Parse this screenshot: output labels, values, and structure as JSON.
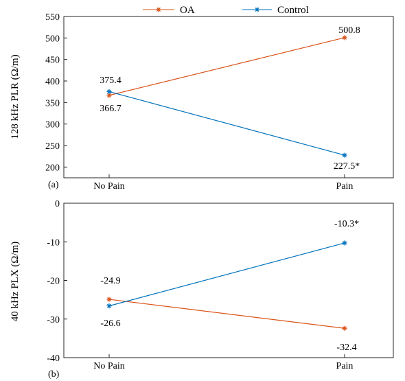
{
  "legend": {
    "placement": "top-center",
    "entries": [
      {
        "label": "OA",
        "color": "#d95319",
        "marker": "asterisk"
      },
      {
        "label": "Control",
        "color": "#0072bd",
        "marker": "asterisk"
      }
    ]
  },
  "chart_data": [
    {
      "type": "line",
      "panel_label": "(a)",
      "categories": [
        "No Pain",
        "Pain"
      ],
      "ylabel": "128 kHz PLR (Ω/m)",
      "ylim": [
        175,
        550
      ],
      "yticks": [
        200,
        250,
        300,
        350,
        400,
        450,
        500,
        550
      ],
      "grid": false,
      "series": [
        {
          "name": "OA",
          "color": "#d95319",
          "values": [
            366.7,
            500.8
          ],
          "labels": [
            "366.7",
            "500.8"
          ]
        },
        {
          "name": "Control",
          "color": "#0072bd",
          "values": [
            375.4,
            227.5
          ],
          "labels": [
            "375.4",
            "227.5*"
          ]
        }
      ]
    },
    {
      "type": "line",
      "panel_label": "(b)",
      "categories": [
        "No Pain",
        "Pain"
      ],
      "ylabel": "40 kHz PLX (Ω/m)",
      "ylim": [
        -40,
        0
      ],
      "yticks": [
        -40,
        -30,
        -20,
        -10,
        0
      ],
      "grid": false,
      "series": [
        {
          "name": "OA",
          "color": "#d95319",
          "values": [
            -24.9,
            -32.4
          ],
          "labels": [
            "-24.9",
            "-32.4"
          ]
        },
        {
          "name": "Control",
          "color": "#0072bd",
          "values": [
            -26.6,
            -10.3
          ],
          "labels": [
            "-26.6",
            "-10.3*"
          ]
        }
      ]
    }
  ]
}
